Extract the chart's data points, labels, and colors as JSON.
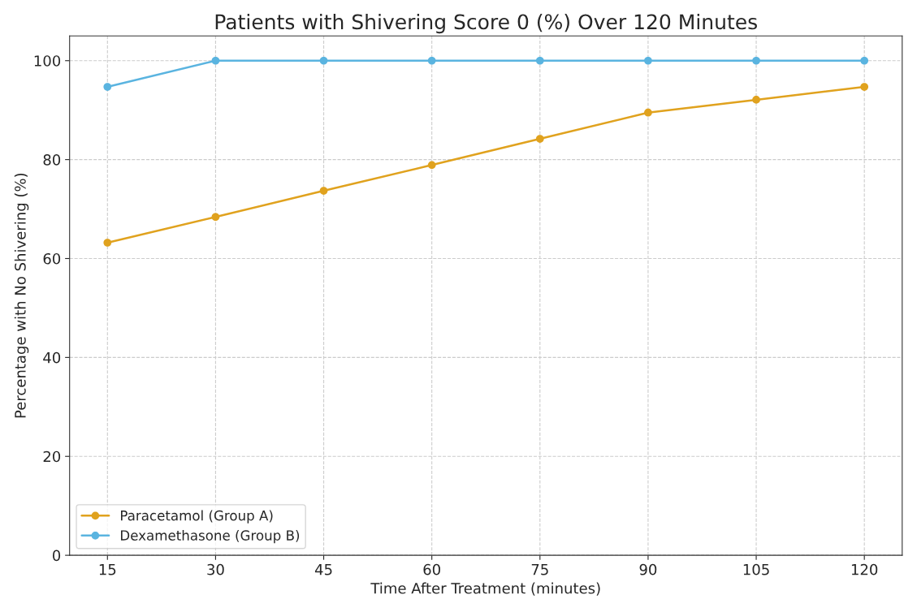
{
  "chart_data": {
    "type": "line",
    "title": "Patients with Shivering Score 0 (%) Over 120 Minutes",
    "xlabel": "Time After Treatment (minutes)",
    "ylabel": "Percentage with No Shivering (%)",
    "x": [
      15,
      30,
      45,
      60,
      75,
      90,
      105,
      120
    ],
    "series": [
      {
        "name": "Paracetamol (Group A)",
        "color": "#e0a21e",
        "values": [
          63.2,
          68.4,
          73.7,
          78.9,
          84.2,
          89.5,
          92.1,
          94.7
        ]
      },
      {
        "name": "Dexamethasone (Group B)",
        "color": "#5ab4e0",
        "values": [
          94.7,
          100,
          100,
          100,
          100,
          100,
          100,
          100
        ]
      }
    ],
    "xlim": [
      9.75,
      125.25
    ],
    "xticks": [
      15,
      30,
      45,
      60,
      75,
      90,
      105,
      120
    ],
    "ylim": [
      0,
      105
    ],
    "yticks": [
      0,
      20,
      40,
      60,
      80,
      100
    ],
    "grid": true,
    "legend": "bottom left",
    "marker": "circle",
    "line_style": "solid"
  }
}
